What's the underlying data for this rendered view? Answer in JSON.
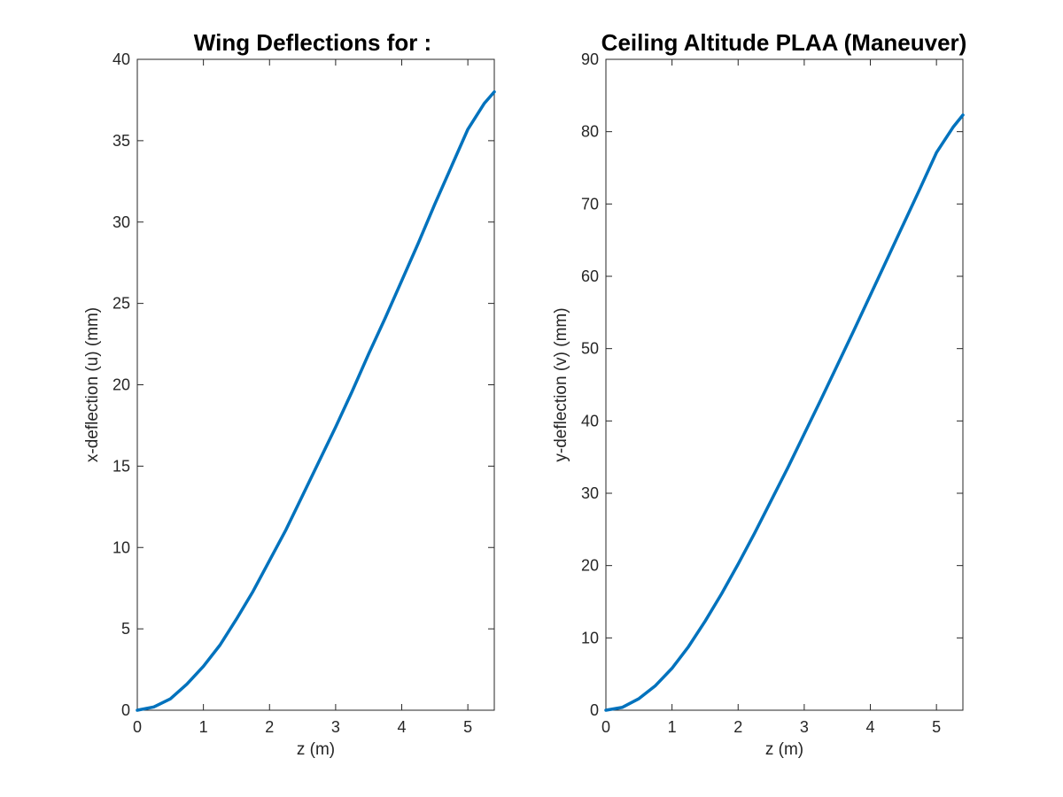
{
  "figure": {
    "title_left": "Wing Deflections for :",
    "title_right": "Ceiling Altitude PLAA (Maneuver)"
  },
  "chart_data": [
    {
      "type": "line",
      "title": "Wing Deflections for :",
      "xlabel": "z (m)",
      "ylabel": "x-deflection (u) (mm)",
      "xlim": [
        0,
        5.4
      ],
      "ylim": [
        0,
        40
      ],
      "xticks": [
        0,
        1,
        2,
        3,
        4,
        5
      ],
      "yticks": [
        0,
        5,
        10,
        15,
        20,
        25,
        30,
        35,
        40
      ],
      "grid": false,
      "color": "#0072BD",
      "series": [
        {
          "x": [
            0,
            0.25,
            0.5,
            0.75,
            1.0,
            1.25,
            1.5,
            1.75,
            2.0,
            2.25,
            2.5,
            2.75,
            3.0,
            3.25,
            3.5,
            3.75,
            4.0,
            4.25,
            4.5,
            4.75,
            5.0,
            5.25,
            5.4
          ],
          "y": [
            0,
            0.2,
            0.7,
            1.6,
            2.7,
            4.0,
            5.6,
            7.3,
            9.2,
            11.1,
            13.2,
            15.3,
            17.4,
            19.6,
            21.9,
            24.1,
            26.4,
            28.7,
            31.1,
            33.4,
            35.7,
            37.3,
            38.0
          ]
        }
      ]
    },
    {
      "type": "line",
      "title": "Ceiling Altitude PLAA (Maneuver)",
      "xlabel": "z (m)",
      "ylabel": "y-deflection (v) (mm)",
      "xlim": [
        0,
        5.4
      ],
      "ylim": [
        0,
        90
      ],
      "xticks": [
        0,
        1,
        2,
        3,
        4,
        5
      ],
      "yticks": [
        0,
        10,
        20,
        30,
        40,
        50,
        60,
        70,
        80,
        90
      ],
      "grid": false,
      "color": "#0072BD",
      "series": [
        {
          "x": [
            0,
            0.25,
            0.5,
            0.75,
            1.0,
            1.25,
            1.5,
            1.75,
            2.0,
            2.25,
            2.5,
            2.75,
            3.0,
            3.25,
            3.5,
            3.75,
            4.0,
            4.25,
            4.5,
            4.75,
            5.0,
            5.25,
            5.4
          ],
          "y": [
            0,
            0.4,
            1.6,
            3.4,
            5.8,
            8.8,
            12.3,
            16.1,
            20.2,
            24.5,
            29.0,
            33.5,
            38.2,
            42.9,
            47.7,
            52.5,
            57.4,
            62.3,
            67.2,
            72.1,
            77.1,
            80.6,
            82.3
          ]
        }
      ]
    }
  ]
}
